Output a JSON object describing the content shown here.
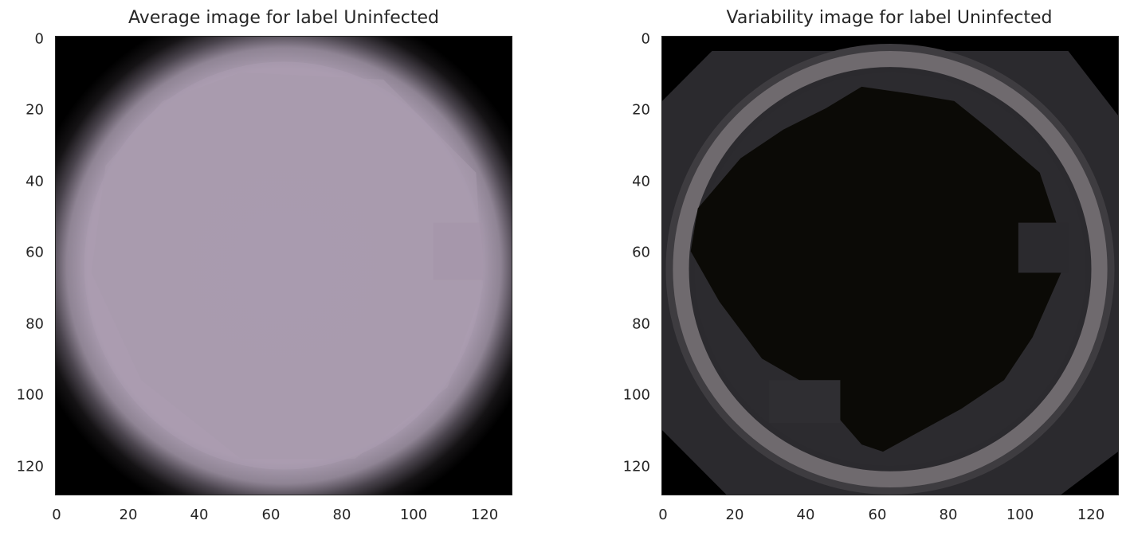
{
  "panels": [
    {
      "title": "Average image for label Uninfected",
      "yticks": [
        "0",
        "20",
        "40",
        "60",
        "80",
        "100",
        "120"
      ],
      "xticks": [
        "0",
        "20",
        "40",
        "60",
        "80",
        "100",
        "120"
      ],
      "image": {
        "description_color_background": "#000000",
        "cell_color": "#ab9cb1"
      }
    },
    {
      "title": "Variability image for label Uninfected",
      "yticks": [
        "0",
        "20",
        "40",
        "60",
        "80",
        "100",
        "120"
      ],
      "xticks": [
        "0",
        "20",
        "40",
        "60",
        "80",
        "100",
        "120"
      ],
      "image": {
        "ring_color": "#6f6a6e",
        "interior_color": "#0b0a06",
        "patch_color": "#2b2a2e"
      }
    }
  ],
  "axis": {
    "xlim": [
      0,
      127
    ],
    "ylim": [
      127,
      0
    ]
  }
}
